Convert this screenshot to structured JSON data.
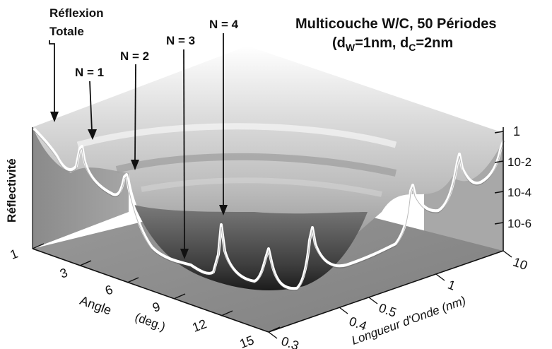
{
  "chart_data": {
    "type": "surface-3d",
    "title_line1": "Multicouche W/C,   50 Périodes",
    "title_line2_prefix": "(d",
    "title_line2_sub1": "W",
    "title_line2_mid": "=1nm, d",
    "title_line2_sub2": "C",
    "title_line2_suffix": "=2nm",
    "zlabel": "Réflectivité",
    "xlabel": "Angle",
    "xunit": "(deg.)",
    "ylabel": "Longueur  d'Onde  (nm)",
    "angle_ticks": [
      "1",
      "3",
      "6",
      "9",
      "12",
      "15"
    ],
    "wavelength_ticks": [
      "10",
      "1",
      "0.5",
      "0.4",
      "0.3"
    ],
    "reflectivity_ticks": [
      "1",
      "10-2",
      "10-4",
      "10-6"
    ],
    "annotations": [
      {
        "text_line1": "Réflexion",
        "text_line2": "Totale",
        "order": "total"
      },
      {
        "text": "N = 1",
        "order": 1
      },
      {
        "text": "N = 2",
        "order": 2
      },
      {
        "text": "N = 3",
        "order": 3
      },
      {
        "text": "N = 4",
        "order": 4
      }
    ]
  }
}
